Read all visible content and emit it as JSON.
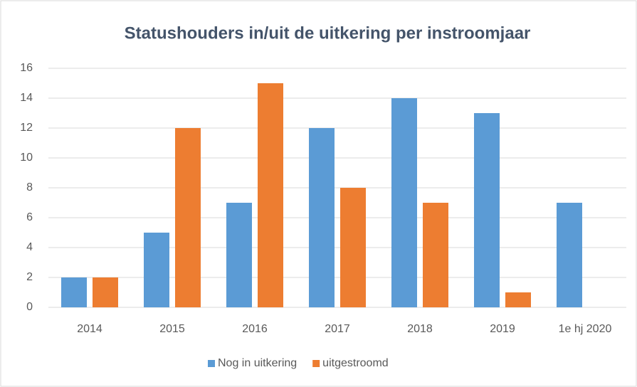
{
  "chart_data": {
    "type": "bar",
    "title": "Statushouders in/uit de uitkering per instroomjaar",
    "categories": [
      "2014",
      "2015",
      "2016",
      "2017",
      "2018",
      "2019",
      "1e hj 2020"
    ],
    "series": [
      {
        "name": "Nog in uitkering",
        "color": "#5b9bd5",
        "values": [
          2,
          5,
          7,
          12,
          14,
          13,
          7
        ]
      },
      {
        "name": "uitgestroomd",
        "color": "#ed7d31",
        "values": [
          2,
          12,
          15,
          8,
          7,
          1,
          0
        ]
      }
    ],
    "ylim": [
      0,
      16
    ],
    "yticks": [
      0,
      2,
      4,
      6,
      8,
      10,
      12,
      14,
      16
    ],
    "grid": true,
    "legend": "bottom"
  }
}
